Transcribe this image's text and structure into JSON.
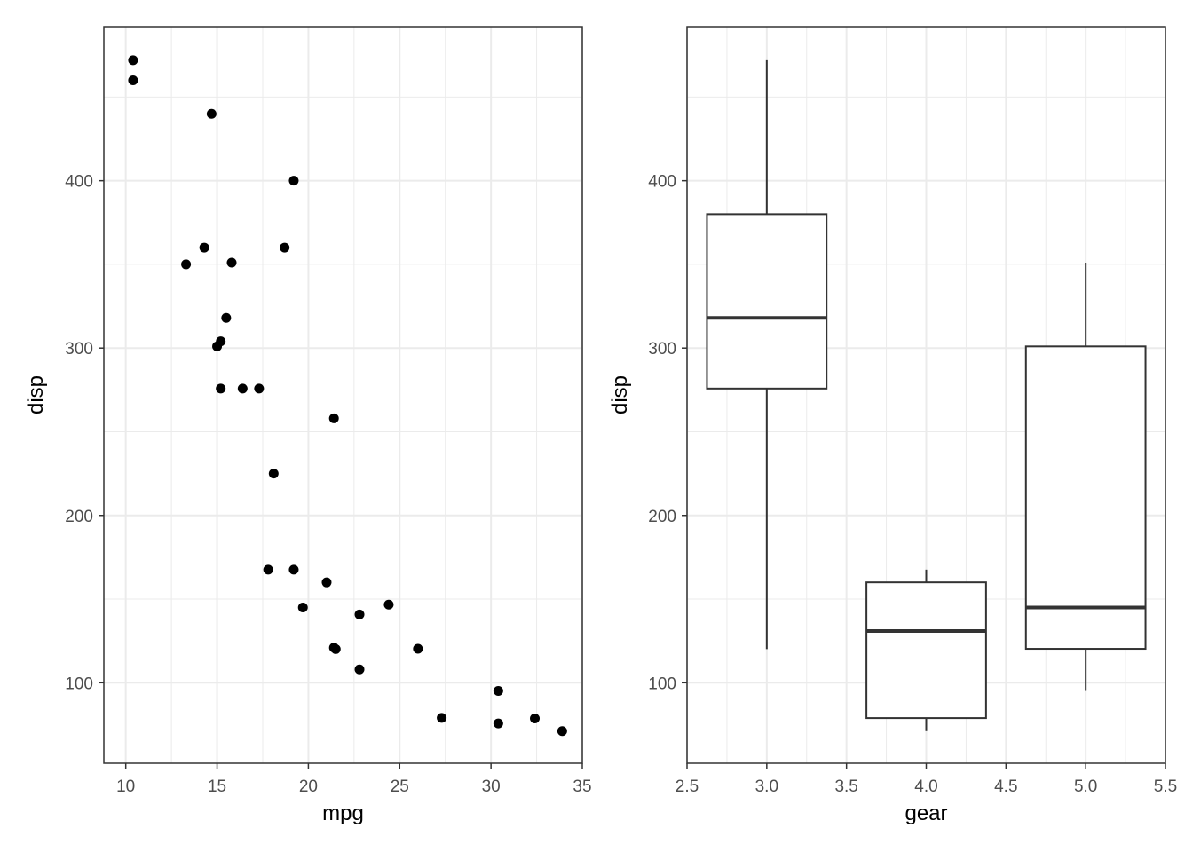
{
  "chart_data": [
    {
      "type": "scatter",
      "xlabel": "mpg",
      "ylabel": "disp",
      "xlim": [
        8.8,
        35.0
      ],
      "ylim": [
        51.9,
        492.1
      ],
      "x_ticks": [
        10,
        15,
        20,
        25,
        30,
        35
      ],
      "y_ticks": [
        100,
        200,
        300,
        400
      ],
      "x_tick_labels": [
        "10",
        "15",
        "20",
        "25",
        "30",
        "35"
      ],
      "y_tick_labels": [
        "100",
        "200",
        "300",
        "400"
      ],
      "grid": true,
      "point_color": "#000000",
      "points": [
        {
          "x": 10.4,
          "y": 472.0
        },
        {
          "x": 10.4,
          "y": 460.0
        },
        {
          "x": 14.7,
          "y": 440.0
        },
        {
          "x": 19.2,
          "y": 400.0
        },
        {
          "x": 14.3,
          "y": 360.0
        },
        {
          "x": 18.7,
          "y": 360.0
        },
        {
          "x": 13.3,
          "y": 350.0
        },
        {
          "x": 15.8,
          "y": 351.0
        },
        {
          "x": 15.5,
          "y": 318.0
        },
        {
          "x": 15.2,
          "y": 304.0
        },
        {
          "x": 15.0,
          "y": 301.0
        },
        {
          "x": 15.2,
          "y": 275.8
        },
        {
          "x": 16.4,
          "y": 275.8
        },
        {
          "x": 17.3,
          "y": 275.8
        },
        {
          "x": 21.4,
          "y": 258.0
        },
        {
          "x": 18.1,
          "y": 225.0
        },
        {
          "x": 17.8,
          "y": 167.6
        },
        {
          "x": 19.2,
          "y": 167.6
        },
        {
          "x": 21.0,
          "y": 160.0
        },
        {
          "x": 19.7,
          "y": 145.0
        },
        {
          "x": 24.4,
          "y": 146.7
        },
        {
          "x": 22.8,
          "y": 140.8
        },
        {
          "x": 21.4,
          "y": 121.0
        },
        {
          "x": 21.5,
          "y": 120.1
        },
        {
          "x": 26.0,
          "y": 120.3
        },
        {
          "x": 22.8,
          "y": 108.0
        },
        {
          "x": 30.4,
          "y": 95.1
        },
        {
          "x": 27.3,
          "y": 79.0
        },
        {
          "x": 32.4,
          "y": 78.7
        },
        {
          "x": 30.4,
          "y": 75.7
        },
        {
          "x": 33.9,
          "y": 71.1
        }
      ]
    },
    {
      "type": "boxplot",
      "xlabel": "gear",
      "ylabel": "disp",
      "xlim": [
        2.5,
        5.5
      ],
      "ylim": [
        51.9,
        492.1
      ],
      "x_ticks": [
        2.5,
        3.0,
        3.5,
        4.0,
        4.5,
        5.0,
        5.5
      ],
      "y_ticks": [
        100,
        200,
        300,
        400
      ],
      "x_tick_labels": [
        "2.5",
        "3.0",
        "3.5",
        "4.0",
        "4.5",
        "5.0",
        "5.5"
      ],
      "y_tick_labels": [
        "100",
        "200",
        "300",
        "400"
      ],
      "grid": true,
      "box_color": "#333333",
      "boxes": [
        {
          "x": 3.0,
          "whisker_low": 120.1,
          "q1": 275.8,
          "median": 318.0,
          "q3": 380.0,
          "whisker_high": 472.0
        },
        {
          "x": 4.0,
          "whisker_low": 71.1,
          "q1": 78.9,
          "median": 130.9,
          "q3": 160.0,
          "whisker_high": 167.6
        },
        {
          "x": 5.0,
          "whisker_low": 95.1,
          "q1": 120.3,
          "median": 145.0,
          "q3": 301.0,
          "whisker_high": 351.0
        }
      ]
    }
  ]
}
